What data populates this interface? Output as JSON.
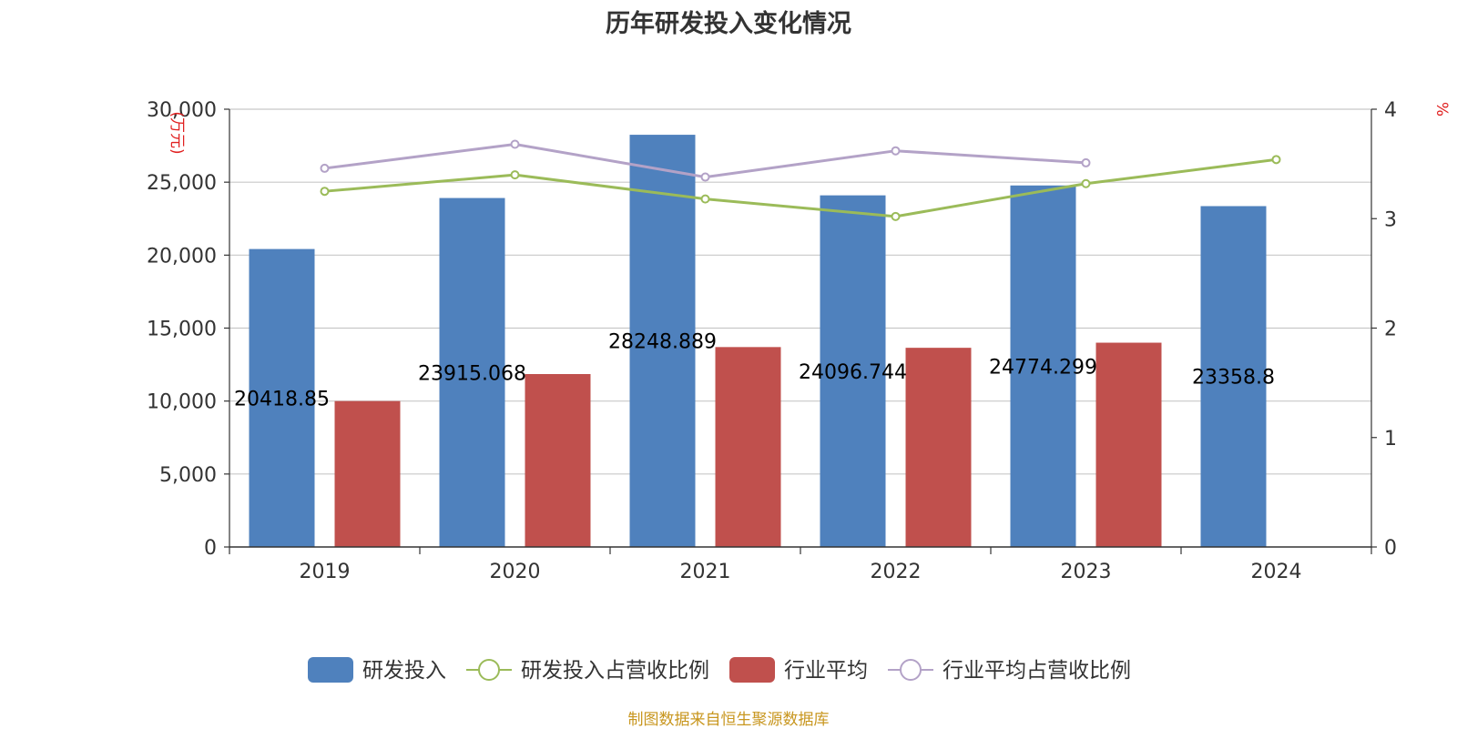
{
  "source_note": "制图数据来自恒生聚源数据库",
  "chart_data": {
    "type": "bar",
    "title": "历年研发投入变化情况",
    "categories": [
      "2019",
      "2020",
      "2021",
      "2022",
      "2023",
      "2024"
    ],
    "y_left": {
      "unit": "万元",
      "range": [
        0,
        30000
      ],
      "ticks": [
        "0",
        "5,000",
        "10,000",
        "15,000",
        "20,000",
        "25,000",
        "30,000"
      ]
    },
    "y_right": {
      "unit": "%",
      "range": [
        0,
        4
      ],
      "ticks": [
        "0",
        "1",
        "2",
        "3",
        "4"
      ]
    },
    "grid": true,
    "legend_position": "bottom",
    "series": [
      {
        "name": "研发投入",
        "type": "bar",
        "axis": "left",
        "color": "#4f81bd",
        "values": [
          20418.85,
          23915.068,
          28248.889,
          24096.744,
          24774.299,
          23358.8
        ],
        "labels": [
          "20418.85",
          "23915.068",
          "28248.889",
          "24096.744",
          "24774.299",
          "23358.8"
        ]
      },
      {
        "name": "研发投入占营收比例",
        "type": "line",
        "axis": "right",
        "color": "#9bbb59",
        "values": [
          3.25,
          3.4,
          3.18,
          3.02,
          3.32,
          3.54
        ]
      },
      {
        "name": "行业平均",
        "type": "bar",
        "axis": "left",
        "color": "#c0504d",
        "values": [
          10000,
          11850,
          13700,
          13650,
          14000,
          null
        ]
      },
      {
        "name": "行业平均占营收比例",
        "type": "line",
        "axis": "right",
        "color": "#b3a2c7",
        "values": [
          3.46,
          3.68,
          3.38,
          3.62,
          3.51,
          null
        ]
      }
    ]
  }
}
